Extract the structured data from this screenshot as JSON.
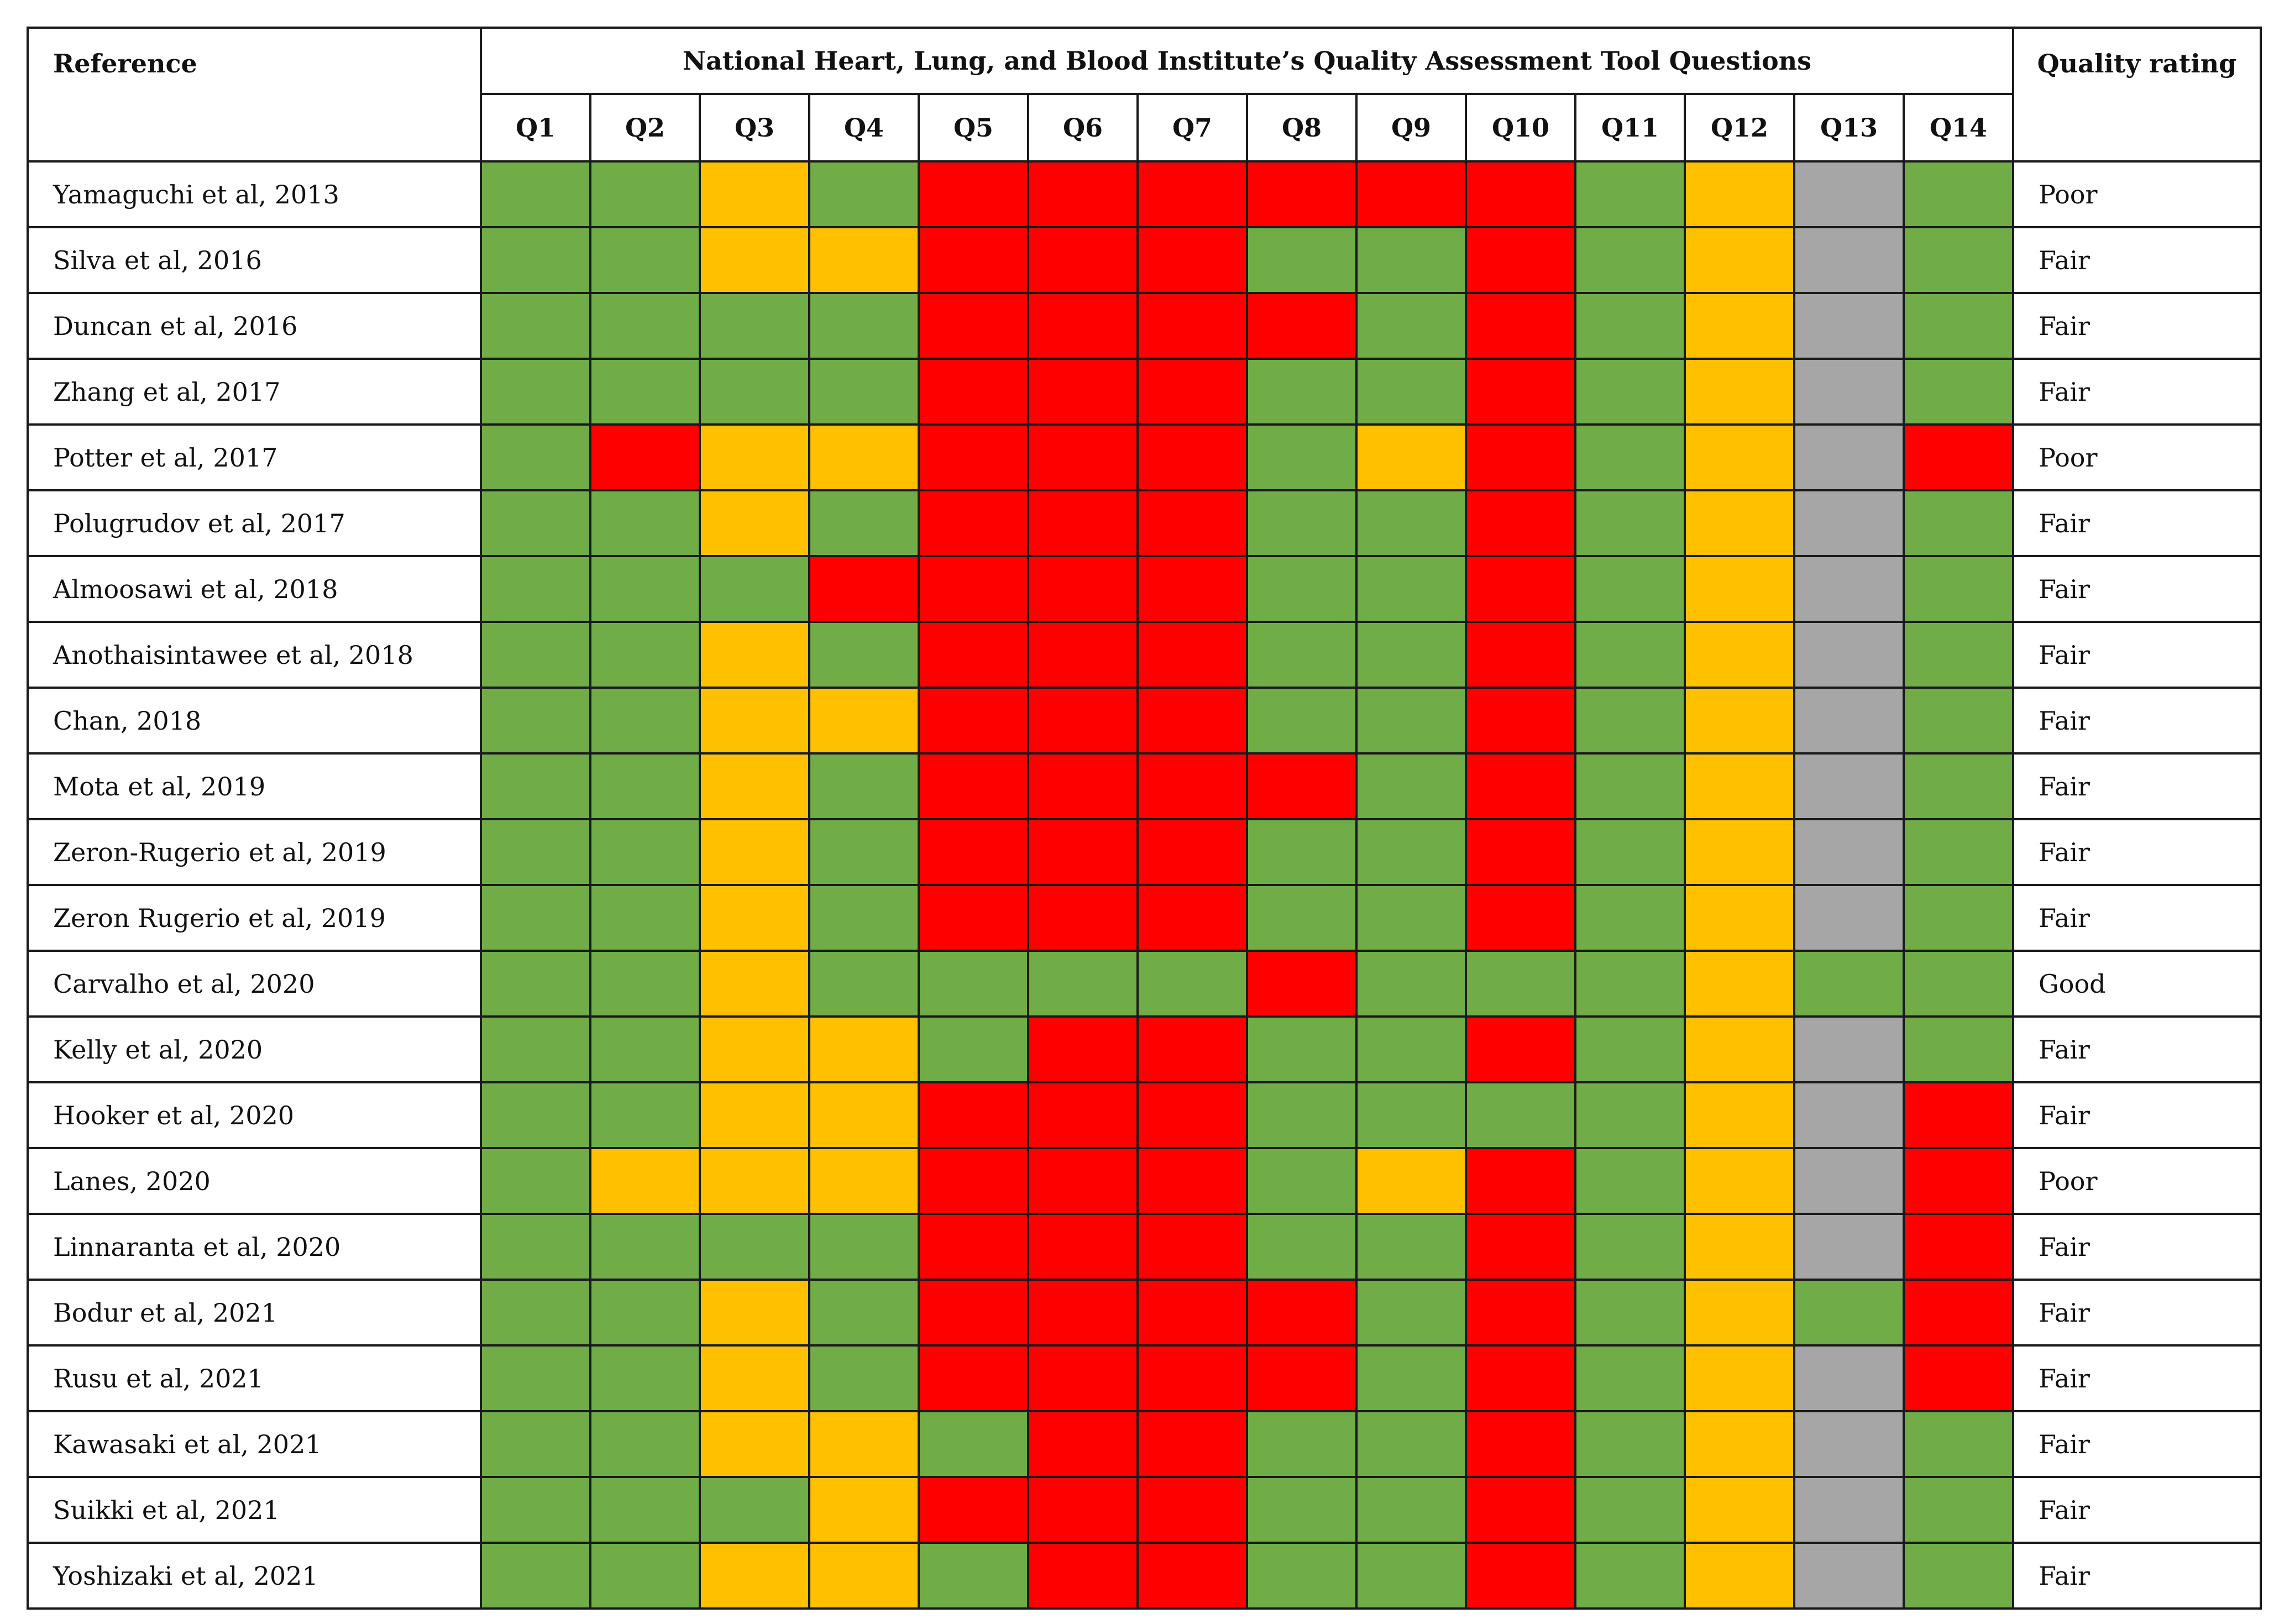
{
  "header": {
    "reference": "Reference",
    "tool_title": "National Heart, Lung, and Blood Institute’s Quality Assessment Tool Questions",
    "quality_rating": "Quality rating",
    "questions": [
      "Q1",
      "Q2",
      "Q3",
      "Q4",
      "Q5",
      "Q6",
      "Q7",
      "Q8",
      "Q9",
      "Q10",
      "Q11",
      "Q12",
      "Q13",
      "Q14"
    ]
  },
  "colors": {
    "g": "#70ad47",
    "y": "#ffc000",
    "r": "#ff0000",
    "n": "#a6a6a6"
  },
  "rows": [
    {
      "reference": "Yamaguchi et al, 2013",
      "cells": "ggyg rrrrrr gyng",
      "rating": "Poor"
    },
    {
      "reference": "Silva et al, 2016",
      "cells": "ggyyrrrggrgyng",
      "rating": "Fair"
    },
    {
      "reference": "Duncan et al, 2016",
      "cells": "ggggrrrrgrgyng",
      "rating": "Fair"
    },
    {
      "reference": "Zhang et al, 2017",
      "cells": "ggggrrrggrgyng",
      "rating": "Fair"
    },
    {
      "reference": "Potter et al, 2017",
      "cells": "gryyrrrgyrgynr",
      "rating": "Poor"
    },
    {
      "reference": "Polugrudov et al, 2017",
      "cells": "ggygrrrggrgyng",
      "rating": "Fair"
    },
    {
      "reference": "Almoosawi et al, 2018",
      "cells": "gggrrrrggrgyng",
      "rating": "Fair"
    },
    {
      "reference": "Anothaisintawee et al, 2018",
      "cells": "ggygrrrggrgyng",
      "rating": "Fair"
    },
    {
      "reference": "Chan, 2018",
      "cells": "ggyyrrrggrgyng",
      "rating": "Fair"
    },
    {
      "reference": "Mota et al, 2019",
      "cells": "ggygrrrrgrgyng",
      "rating": "Fair"
    },
    {
      "reference": "Zeron-Rugerio et al, 2019",
      "cells": "ggygrrrggrgyng",
      "rating": "Fair"
    },
    {
      "reference": "Zeron Rugerio et al, 2019",
      "cells": "ggygrrrggrgyng",
      "rating": "Fair"
    },
    {
      "reference": "Carvalho et al, 2020",
      "cells": "ggygggg rgggygg",
      "rating": "Good"
    },
    {
      "reference": "Kelly et al, 2020",
      "cells": "ggyygrrggrgyng",
      "rating": "Fair"
    },
    {
      "reference": "Hooker et al, 2020",
      "cells": "ggyyrrrgggg ynr",
      "rating": "Fair"
    },
    {
      "reference": "Lanes, 2020",
      "cells": "gyyyrrrgyrgynr",
      "rating": "Poor"
    },
    {
      "reference": "Linnaranta et al, 2020",
      "cells": "ggggrrrggrgynr",
      "rating": "Fair"
    },
    {
      "reference": "Bodur et al, 2021",
      "cells": "ggygrrrrgrgygr",
      "rating": "Fair"
    },
    {
      "reference": "Rusu et al, 2021",
      "cells": "ggygrrrrgrgynr",
      "rating": "Fair"
    },
    {
      "reference": "Kawasaki et al, 2021",
      "cells": "ggyygrrggrgyng",
      "rating": "Fair"
    },
    {
      "reference": "Suikki et al, 2021",
      "cells": "gggyrrrggrgyng",
      "rating": "Fair"
    },
    {
      "reference": "Yoshizaki et al, 2021",
      "cells": "ggyygrrggrgyng",
      "rating": "Fair"
    }
  ]
}
